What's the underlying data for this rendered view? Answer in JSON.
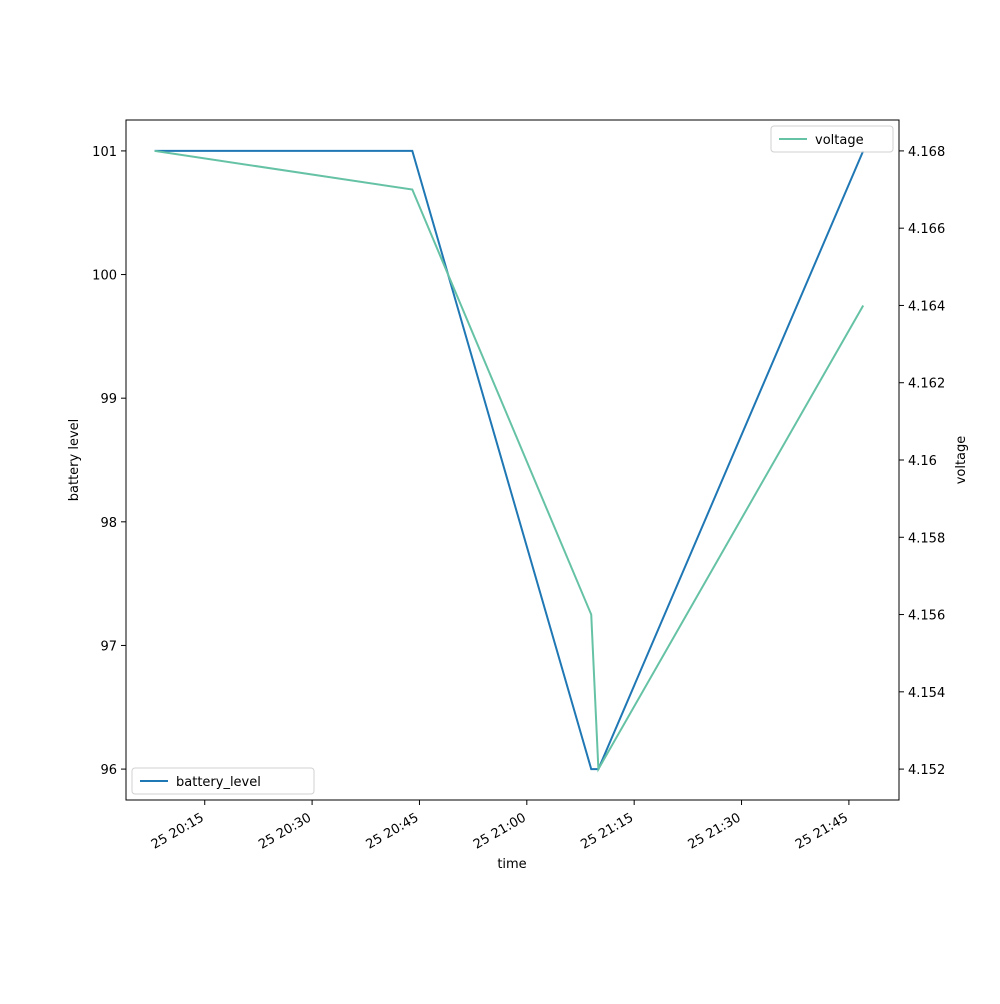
{
  "chart_data": {
    "type": "line",
    "xlabel": "time",
    "ylabel": "battery level",
    "y2label": "voltage",
    "x": [
      "25 20:08",
      "25 20:44",
      "25 21:09",
      "25 21:10",
      "25 21:47"
    ],
    "series": [
      {
        "name": "battery_level",
        "color": "#1f77b4",
        "axis": "y",
        "legend": "lower left",
        "values": [
          101,
          101,
          96,
          96,
          101
        ]
      },
      {
        "name": "voltage",
        "color": "#66c2a5",
        "axis": "y2",
        "legend": "upper right",
        "values": [
          4.168,
          4.167,
          4.156,
          4.152,
          4.164
        ]
      }
    ],
    "xlim": [
      "25 20:04",
      "25 21:52"
    ],
    "xticks": [
      "25 20:15",
      "25 20:30",
      "25 20:45",
      "25 21:00",
      "25 21:15",
      "25 21:30",
      "25 21:45"
    ],
    "ylim": [
      95.75,
      101.25
    ],
    "yticks": [
      96,
      97,
      98,
      99,
      100,
      101
    ],
    "y2lim": [
      4.1512,
      4.1688
    ],
    "y2ticks": [
      4.152,
      4.154,
      4.156,
      4.158,
      4.16,
      4.162,
      4.164,
      4.166,
      4.168
    ],
    "grid": false
  }
}
